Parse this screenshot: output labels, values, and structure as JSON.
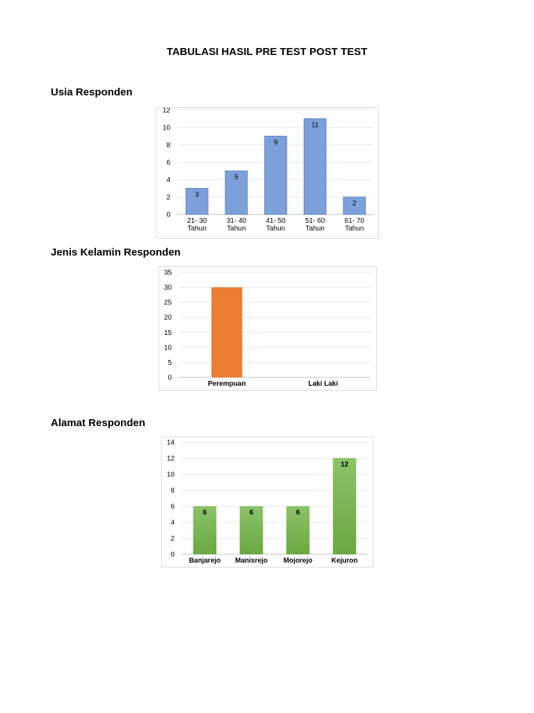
{
  "document": {
    "title": "TABULASI HASIL PRE TEST POST TEST"
  },
  "sections": [
    {
      "heading": "Usia Responden"
    },
    {
      "heading": "Jenis Kelamin Responden"
    },
    {
      "heading": "Alamat Responden"
    }
  ],
  "chart_data": [
    {
      "type": "bar",
      "categories": [
        "21- 30\nTahun",
        "31- 40\nTahun",
        "41- 50\nTahun",
        "51- 60\nTahun",
        "61- 70\nTahun"
      ],
      "values": [
        3,
        5,
        9,
        11,
        2
      ],
      "ylim": [
        0,
        12
      ],
      "yticks": [
        0,
        2,
        4,
        6,
        8,
        10,
        12
      ],
      "grid": true,
      "data_labels": true,
      "color": "#7da0db"
    },
    {
      "type": "bar",
      "categories": [
        "Perempuan",
        "Laki Laki"
      ],
      "values": [
        30,
        0
      ],
      "ylim": [
        0,
        35
      ],
      "yticks": [
        0,
        5,
        10,
        15,
        20,
        25,
        30,
        35
      ],
      "grid": true,
      "data_labels": false,
      "color": "#ed7d31"
    },
    {
      "type": "bar",
      "categories": [
        "Banjarejo",
        "Manisrejo",
        "Mojorejo",
        "Kejuron"
      ],
      "values": [
        6,
        6,
        6,
        12
      ],
      "ylim": [
        0,
        14
      ],
      "yticks": [
        0,
        2,
        4,
        6,
        8,
        10,
        12,
        14
      ],
      "grid": true,
      "data_labels": true,
      "color": "#70ad47"
    }
  ]
}
